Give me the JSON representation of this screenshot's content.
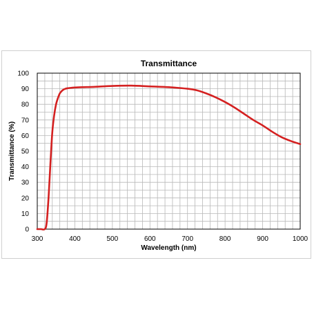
{
  "chart_data": {
    "type": "line",
    "title": "Transmittance",
    "xlabel": "Wavelength (nm)",
    "ylabel": "Transmittance (%)",
    "xlim": [
      300,
      1000
    ],
    "ylim": [
      0,
      100
    ],
    "x_ticks": [
      "300",
      "400",
      "500",
      "600",
      "700",
      "800",
      "900",
      "1000"
    ],
    "y_ticks": [
      "0",
      "10",
      "20",
      "30",
      "40",
      "50",
      "60",
      "70",
      "80",
      "90",
      "100"
    ],
    "x_minor_step": 20,
    "y_minor_step": 5,
    "grid": true,
    "series_color": "#d42020",
    "series": [
      {
        "x": [
          300,
          310,
          320,
          325,
          330,
          335,
          340,
          345,
          350,
          355,
          360,
          365,
          370,
          375,
          380,
          390,
          400,
          420,
          450,
          500,
          550,
          600,
          650,
          700,
          725,
          750,
          775,
          800,
          825,
          850,
          875,
          900,
          925,
          950,
          975,
          1000
        ],
        "y": [
          0,
          0,
          0,
          4,
          20,
          42,
          62,
          73,
          80,
          84,
          87,
          88.5,
          89.5,
          90,
          90.3,
          90.6,
          90.8,
          91,
          91.2,
          91.8,
          92,
          91.5,
          91,
          90,
          89,
          87,
          84.5,
          81.5,
          78,
          74,
          70,
          66.5,
          62.5,
          59,
          56.5,
          54.5
        ]
      }
    ]
  }
}
